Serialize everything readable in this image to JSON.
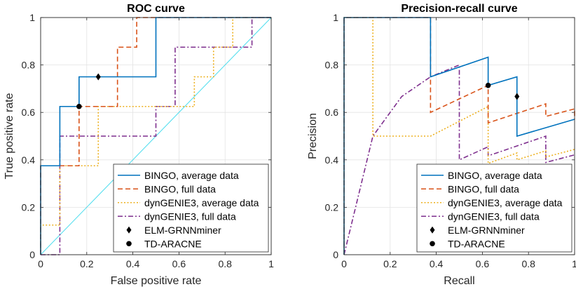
{
  "chart_data": [
    {
      "type": "line",
      "title": "ROC curve",
      "xlabel": "False positive rate",
      "ylabel": "True positive rate",
      "xlim": [
        0,
        1
      ],
      "ylim": [
        0,
        1
      ],
      "xticks": [
        "0",
        "0.2",
        "0.4",
        "0.6",
        "0.8",
        "1"
      ],
      "yticks": [
        "0",
        "0.2",
        "0.4",
        "0.6",
        "0.8",
        "1"
      ],
      "grid": true,
      "legend_position": "bottom-right",
      "series": [
        {
          "name": "BINGO, average data",
          "style": "solid",
          "color": "#0072BD",
          "x": [
            0,
            0,
            0.0833,
            0.0833,
            0.1667,
            0.1667,
            0.5,
            0.5,
            1
          ],
          "y": [
            0,
            0.375,
            0.375,
            0.625,
            0.625,
            0.75,
            0.75,
            1,
            1
          ]
        },
        {
          "name": "BINGO, full data",
          "style": "dashed",
          "color": "#D95319",
          "x": [
            0,
            0,
            0.1667,
            0.1667,
            0.3333,
            0.3333,
            0.4167,
            0.4167,
            1
          ],
          "y": [
            0,
            0.375,
            0.375,
            0.625,
            0.625,
            0.875,
            0.875,
            1,
            1
          ]
        },
        {
          "name": "dynGENIE3, average data",
          "style": "dotted",
          "color": "#EDB120",
          "x": [
            0,
            0,
            0.0833,
            0.0833,
            0.25,
            0.25,
            0.6667,
            0.6667,
            0.75,
            0.75,
            0.8333,
            0.8333,
            1
          ],
          "y": [
            0,
            0.125,
            0.125,
            0.375,
            0.375,
            0.625,
            0.625,
            0.75,
            0.75,
            0.875,
            0.875,
            1,
            1
          ]
        },
        {
          "name": "dynGENIE3, full data",
          "style": "dashdot",
          "color": "#7E2F8E",
          "x": [
            0,
            0.0833,
            0.0833,
            0.5,
            0.5,
            0.5833,
            0.5833,
            0.9167,
            0.9167,
            1
          ],
          "y": [
            0,
            0,
            0.5,
            0.5,
            0.625,
            0.625,
            0.875,
            0.875,
            1,
            1
          ]
        },
        {
          "name": "ELM-GRNNminer",
          "style": "diamond",
          "color": "#000000",
          "x": [
            0.25
          ],
          "y": [
            0.75
          ]
        },
        {
          "name": "TD-ARACNE",
          "style": "circle",
          "color": "#000000",
          "x": [
            0.1667
          ],
          "y": [
            0.625
          ]
        }
      ],
      "reference_line": {
        "x": [
          0,
          1
        ],
        "y": [
          0,
          1
        ],
        "color": "#4DDDEE"
      }
    },
    {
      "type": "line",
      "title": "Precision-recall curve",
      "xlabel": "Recall",
      "ylabel": "Precision",
      "xlim": [
        0,
        1
      ],
      "ylim": [
        0,
        1
      ],
      "xticks": [
        "0",
        "0.2",
        "0.4",
        "0.6",
        "0.8",
        "1"
      ],
      "yticks": [
        "0",
        "0.2",
        "0.4",
        "0.6",
        "0.8",
        "1"
      ],
      "grid": true,
      "legend_position": "bottom-right",
      "series": [
        {
          "name": "BINGO, average data",
          "style": "solid",
          "color": "#0072BD",
          "x": [
            0,
            0,
            0.375,
            0.375,
            0.625,
            0.625,
            0.75,
            0.75,
            1
          ],
          "y": [
            0,
            1,
            1,
            0.75,
            0.833,
            0.714,
            0.75,
            0.5,
            0.571
          ]
        },
        {
          "name": "BINGO, full data",
          "style": "dashed",
          "color": "#D95319",
          "x": [
            0,
            0,
            0.375,
            0.375,
            0.625,
            0.625,
            0.875,
            0.875,
            1,
            1
          ],
          "y": [
            0,
            1,
            1,
            0.6,
            0.714,
            0.556,
            0.636,
            0.583,
            0.615,
            0.571
          ]
        },
        {
          "name": "dynGENIE3, average data",
          "style": "dotted",
          "color": "#EDB120",
          "x": [
            0,
            0,
            0.125,
            0.125,
            0.375,
            0.375,
            0.625,
            0.625,
            0.75,
            0.75,
            0.875,
            0.875,
            1
          ],
          "y": [
            0,
            1,
            1,
            0.5,
            0.5,
            0.5,
            0.625,
            0.385,
            0.429,
            0.4,
            0.438,
            0.412,
            0.444
          ]
        },
        {
          "name": "dynGENIE3, full data",
          "style": "dashdot",
          "color": "#7E2F8E",
          "x": [
            0,
            0.125,
            0.25,
            0.375,
            0.5,
            0.5,
            0.625,
            0.625,
            0.875,
            0.875,
            1
          ],
          "y": [
            0,
            0.5,
            0.667,
            0.75,
            0.8,
            0.4,
            0.455,
            0.417,
            0.5,
            0.389,
            0.421
          ]
        },
        {
          "name": "ELM-GRNNminer",
          "style": "diamond",
          "color": "#000000",
          "x": [
            0.75
          ],
          "y": [
            0.667
          ]
        },
        {
          "name": "TD-ARACNE",
          "style": "circle",
          "color": "#000000",
          "x": [
            0.625
          ],
          "y": [
            0.714
          ]
        }
      ]
    }
  ]
}
